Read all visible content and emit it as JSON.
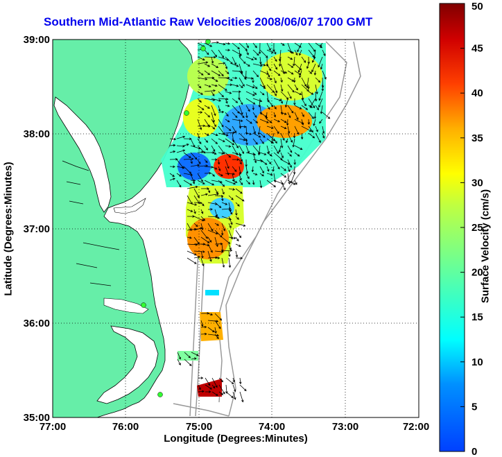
{
  "title": "Southern Mid-Atlantic Raw Velocities 2008/06/07 1700 GMT",
  "xlabel": "Longitude (Degrees:Minutes)",
  "ylabel": "Latitude (Degrees:Minutes)",
  "colorbar": {
    "label": "Surface Velocity (cm/s)",
    "range": [
      0,
      50
    ],
    "ticks": [
      "0",
      "5",
      "10",
      "15",
      "20",
      "25",
      "30",
      "35",
      "40",
      "45",
      "50"
    ]
  },
  "chart_data": {
    "type": "map",
    "xlim": [
      "77:00",
      "72:00"
    ],
    "ylim": [
      "35:00",
      "39:00"
    ],
    "x_ticks": [
      "77:00",
      "76:00",
      "75:00",
      "74:00",
      "73:00",
      "72:00"
    ],
    "y_ticks": [
      "39:00",
      "38:00",
      "37:00",
      "36:00",
      "35:00"
    ],
    "grid": true,
    "land_color": "#66eea8",
    "contour_color": "#999999",
    "station_color": "#33ff33"
  }
}
